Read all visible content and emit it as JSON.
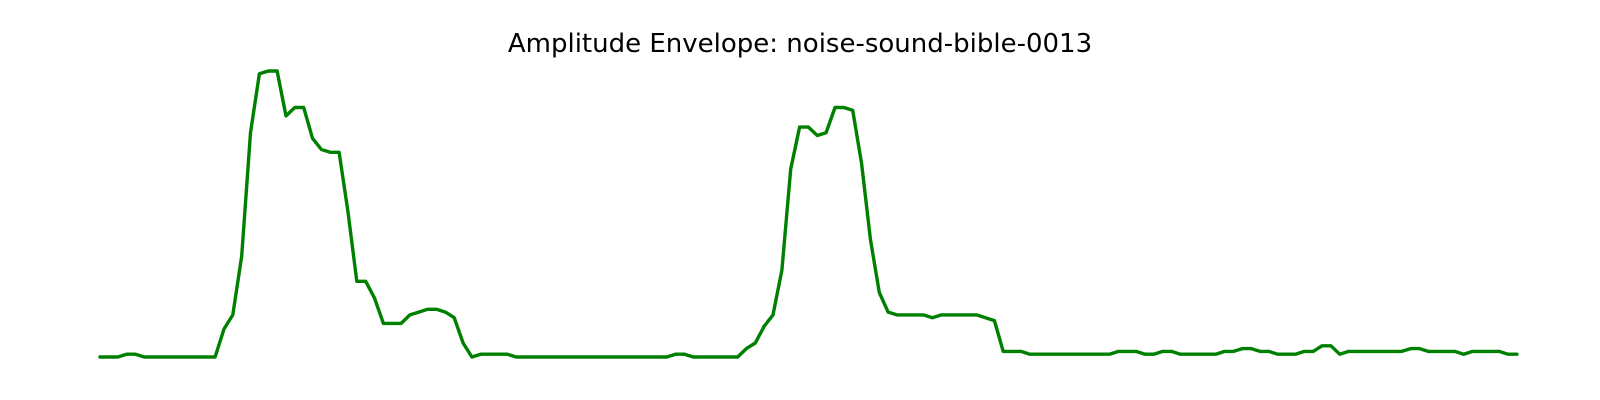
{
  "chart_data": {
    "type": "line",
    "title": "Amplitude Envelope: noise-sound-bible-0013",
    "xlabel": "",
    "ylabel": "",
    "axes_visible": false,
    "grid": false,
    "legend": "none",
    "xlim": [
      0,
      159
    ],
    "ylim": [
      0,
      1.07
    ],
    "color": "#008000",
    "series": [
      {
        "values": [
          0.0,
          0.0,
          0.0,
          0.01,
          0.01,
          0.0,
          0.0,
          0.0,
          0.0,
          0.0,
          0.0,
          0.0,
          0.0,
          0.0,
          0.1,
          0.15,
          0.36,
          0.8,
          1.01,
          1.02,
          1.02,
          0.86,
          0.89,
          0.89,
          0.78,
          0.74,
          0.73,
          0.73,
          0.52,
          0.27,
          0.27,
          0.21,
          0.12,
          0.12,
          0.12,
          0.15,
          0.16,
          0.17,
          0.17,
          0.16,
          0.14,
          0.05,
          0.0,
          0.01,
          0.01,
          0.01,
          0.01,
          0.0,
          0.0,
          0.0,
          0.0,
          0.0,
          0.0,
          0.0,
          0.0,
          0.0,
          0.0,
          0.0,
          0.0,
          0.0,
          0.0,
          0.0,
          0.0,
          0.0,
          0.0,
          0.01,
          0.01,
          0.0,
          0.0,
          0.0,
          0.0,
          0.0,
          0.0,
          0.03,
          0.05,
          0.11,
          0.15,
          0.31,
          0.67,
          0.82,
          0.82,
          0.79,
          0.8,
          0.89,
          0.89,
          0.88,
          0.69,
          0.42,
          0.23,
          0.16,
          0.15,
          0.15,
          0.15,
          0.15,
          0.14,
          0.15,
          0.15,
          0.15,
          0.15,
          0.15,
          0.14,
          0.13,
          0.02,
          0.02,
          0.02,
          0.01,
          0.01,
          0.01,
          0.01,
          0.01,
          0.01,
          0.01,
          0.01,
          0.01,
          0.01,
          0.02,
          0.02,
          0.02,
          0.01,
          0.01,
          0.02,
          0.02,
          0.01,
          0.01,
          0.01,
          0.01,
          0.01,
          0.02,
          0.02,
          0.03,
          0.03,
          0.02,
          0.02,
          0.01,
          0.01,
          0.01,
          0.02,
          0.02,
          0.04,
          0.04,
          0.01,
          0.02,
          0.02,
          0.02,
          0.02,
          0.02,
          0.02,
          0.02,
          0.03,
          0.03,
          0.02,
          0.02,
          0.02,
          0.02,
          0.01,
          0.02,
          0.02,
          0.02,
          0.02,
          0.01,
          0.01
        ]
      }
    ]
  }
}
